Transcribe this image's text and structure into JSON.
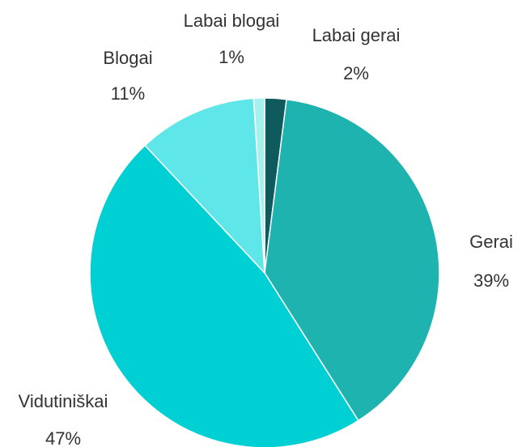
{
  "chart_data": {
    "type": "pie",
    "categories": [
      "Labai gerai",
      "Gerai",
      "Vidutiniškai",
      "Blogai",
      "Labai blogai"
    ],
    "values": [
      2,
      39,
      47,
      11,
      1
    ],
    "value_labels": [
      "2%",
      "39%",
      "47%",
      "11%",
      "1%"
    ],
    "colors": [
      "#0e5a5c",
      "#1fb3b0",
      "#00cfd3",
      "#5ee6e8",
      "#a6f0f0"
    ]
  }
}
